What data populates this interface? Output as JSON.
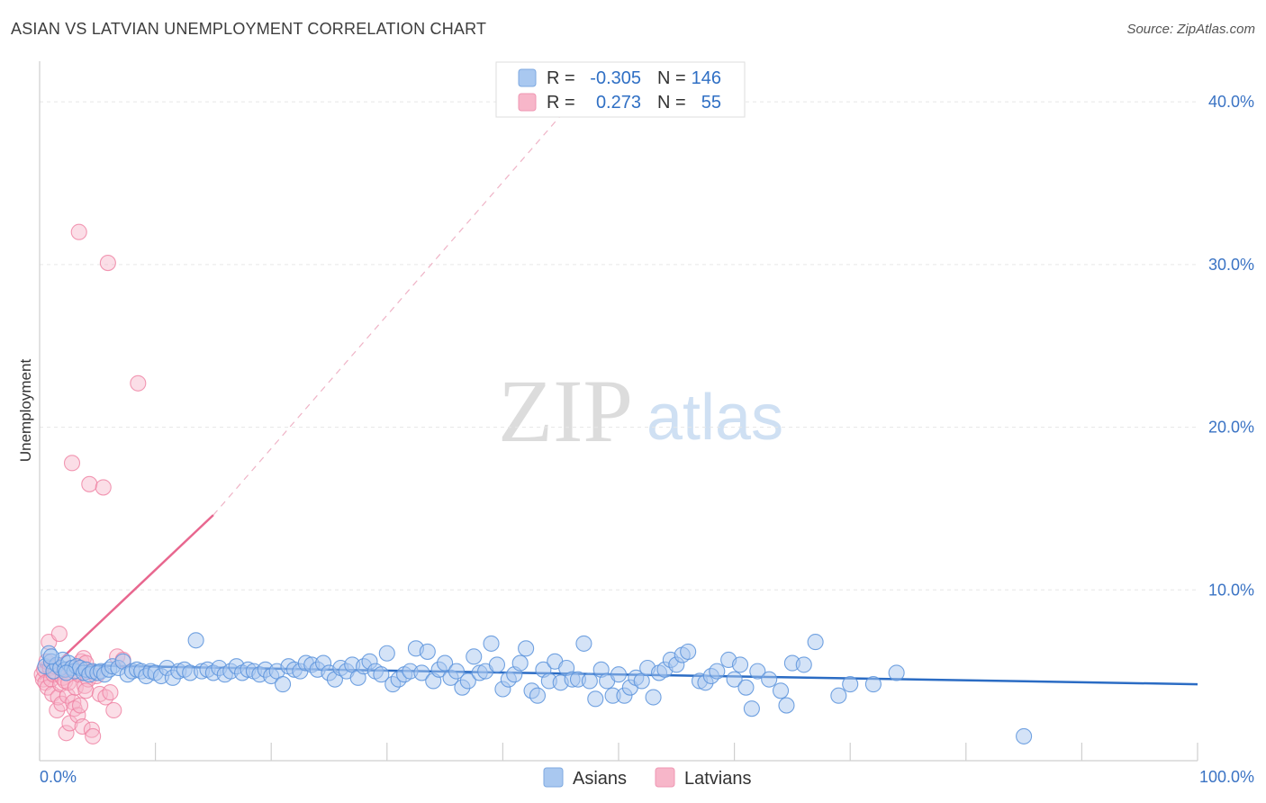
{
  "header": {
    "title": "ASIAN VS LATVIAN UNEMPLOYMENT CORRELATION CHART",
    "source": "Source: ZipAtlas.com"
  },
  "watermark": {
    "zip": "ZIP",
    "atlas": "atlas"
  },
  "stats_legend": {
    "rows": [
      {
        "r_label": "R =",
        "r_value": "-0.305",
        "n_label": "N =",
        "n_value": "146",
        "color": "#a9c8f0"
      },
      {
        "r_label": "R =",
        "r_value": " 0.273",
        "n_label": "N =",
        "n_value": "55",
        "color": "#f7b6c9"
      }
    ]
  },
  "chart_data": {
    "type": "scatter",
    "title": "ASIAN VS LATVIAN UNEMPLOYMENT CORRELATION CHART",
    "xlabel": "",
    "ylabel": "Unemployment",
    "xlim": [
      0,
      100
    ],
    "ylim": [
      -0.5,
      42.5
    ],
    "x_tick_labels": [
      "0.0%",
      "100.0%"
    ],
    "y_ticks": [
      10,
      20,
      30,
      40
    ],
    "y_tick_labels": [
      "10.0%",
      "20.0%",
      "30.0%",
      "40.0%"
    ],
    "grid": true,
    "legend_position": "bottom",
    "colors": {
      "asians": "#5b93dc",
      "asians_line": "#2b6cc4",
      "latvians": "#ef7fa1",
      "latvians_line": "#e8678f"
    },
    "series": [
      {
        "name": "Asians",
        "r": -0.305,
        "n": 146,
        "trend": {
          "x0": 0,
          "y0": 5.4,
          "x1": 100,
          "y1": 4.2
        },
        "points": [
          [
            0.5,
            5.3
          ],
          [
            0.8,
            6.1
          ],
          [
            1.0,
            5.6
          ],
          [
            1.2,
            5.0
          ],
          [
            1.5,
            5.4
          ],
          [
            1.8,
            5.2
          ],
          [
            2.0,
            5.7
          ],
          [
            2.2,
            5.1
          ],
          [
            2.5,
            5.5
          ],
          [
            2.8,
            5.2
          ],
          [
            3.0,
            5.0
          ],
          [
            3.2,
            5.3
          ],
          [
            3.5,
            5.2
          ],
          [
            3.8,
            4.9
          ],
          [
            4.0,
            5.1
          ],
          [
            4.3,
            4.8
          ],
          [
            4.6,
            5.0
          ],
          [
            5.0,
            4.9
          ],
          [
            5.3,
            5.0
          ],
          [
            5.6,
            4.8
          ],
          [
            6.0,
            5.1
          ],
          [
            6.3,
            5.3
          ],
          [
            6.8,
            5.2
          ],
          [
            7.2,
            5.6
          ],
          [
            7.6,
            4.8
          ],
          [
            8.0,
            5.0
          ],
          [
            8.4,
            5.1
          ],
          [
            8.8,
            5.0
          ],
          [
            9.2,
            4.7
          ],
          [
            9.6,
            5.0
          ],
          [
            10.0,
            4.9
          ],
          [
            10.5,
            4.7
          ],
          [
            11.0,
            5.2
          ],
          [
            11.5,
            4.6
          ],
          [
            12.0,
            5.0
          ],
          [
            12.5,
            5.1
          ],
          [
            13.0,
            4.9
          ],
          [
            13.5,
            6.9
          ],
          [
            14.0,
            5.0
          ],
          [
            14.5,
            5.1
          ],
          [
            15.0,
            4.9
          ],
          [
            15.5,
            5.2
          ],
          [
            16.0,
            4.8
          ],
          [
            16.5,
            5.0
          ],
          [
            17.0,
            5.3
          ],
          [
            17.5,
            4.9
          ],
          [
            18.0,
            5.1
          ],
          [
            18.5,
            5.0
          ],
          [
            19.0,
            4.8
          ],
          [
            19.5,
            5.1
          ],
          [
            20.0,
            4.7
          ],
          [
            20.5,
            5.0
          ],
          [
            21.0,
            4.2
          ],
          [
            21.5,
            5.3
          ],
          [
            22.0,
            5.1
          ],
          [
            22.5,
            5.0
          ],
          [
            23.0,
            5.5
          ],
          [
            23.5,
            5.4
          ],
          [
            24.0,
            5.1
          ],
          [
            24.5,
            5.5
          ],
          [
            25.0,
            4.9
          ],
          [
            25.5,
            4.5
          ],
          [
            26.0,
            5.2
          ],
          [
            26.5,
            5.0
          ],
          [
            27.0,
            5.4
          ],
          [
            27.5,
            4.6
          ],
          [
            28.0,
            5.3
          ],
          [
            28.5,
            5.6
          ],
          [
            29.0,
            5.0
          ],
          [
            29.5,
            4.8
          ],
          [
            30.0,
            6.1
          ],
          [
            30.5,
            4.2
          ],
          [
            31.0,
            4.5
          ],
          [
            31.5,
            4.8
          ],
          [
            32.0,
            5.0
          ],
          [
            32.5,
            6.4
          ],
          [
            33.0,
            4.9
          ],
          [
            33.5,
            6.2
          ],
          [
            34.0,
            4.4
          ],
          [
            34.5,
            5.1
          ],
          [
            35.0,
            5.5
          ],
          [
            35.5,
            4.6
          ],
          [
            36.0,
            5.0
          ],
          [
            36.5,
            4.0
          ],
          [
            37.0,
            4.4
          ],
          [
            37.5,
            5.9
          ],
          [
            38.0,
            4.9
          ],
          [
            38.5,
            5.0
          ],
          [
            39.0,
            6.7
          ],
          [
            39.5,
            5.4
          ],
          [
            40.0,
            3.9
          ],
          [
            40.5,
            4.5
          ],
          [
            41.0,
            4.8
          ],
          [
            41.5,
            5.5
          ],
          [
            42.0,
            6.4
          ],
          [
            42.5,
            3.8
          ],
          [
            43.0,
            3.5
          ],
          [
            43.5,
            5.1
          ],
          [
            44.0,
            4.4
          ],
          [
            44.5,
            5.6
          ],
          [
            45.0,
            4.3
          ],
          [
            45.5,
            5.2
          ],
          [
            46.0,
            4.5
          ],
          [
            46.5,
            4.5
          ],
          [
            47.0,
            6.7
          ],
          [
            47.5,
            4.4
          ],
          [
            48.0,
            3.3
          ],
          [
            48.5,
            5.1
          ],
          [
            49.0,
            4.4
          ],
          [
            49.5,
            3.5
          ],
          [
            50.0,
            4.8
          ],
          [
            50.5,
            3.5
          ],
          [
            51.0,
            4.0
          ],
          [
            51.5,
            4.6
          ],
          [
            52.0,
            4.4
          ],
          [
            52.5,
            5.2
          ],
          [
            53.0,
            3.4
          ],
          [
            53.5,
            4.9
          ],
          [
            54.0,
            5.1
          ],
          [
            54.5,
            5.7
          ],
          [
            55.0,
            5.4
          ],
          [
            55.5,
            6.0
          ],
          [
            56.0,
            6.2
          ],
          [
            57.0,
            4.4
          ],
          [
            57.5,
            4.3
          ],
          [
            58.0,
            4.7
          ],
          [
            58.5,
            5.0
          ],
          [
            59.5,
            5.7
          ],
          [
            60.0,
            4.5
          ],
          [
            60.5,
            5.4
          ],
          [
            61.0,
            4.0
          ],
          [
            61.5,
            2.7
          ],
          [
            62.0,
            5.0
          ],
          [
            63.0,
            4.5
          ],
          [
            64.0,
            3.8
          ],
          [
            64.5,
            2.9
          ],
          [
            65.0,
            5.5
          ],
          [
            66.0,
            5.4
          ],
          [
            67.0,
            6.8
          ],
          [
            69.0,
            3.5
          ],
          [
            70.0,
            4.2
          ],
          [
            72.0,
            4.2
          ],
          [
            74.0,
            4.9
          ],
          [
            85.0,
            1.0
          ],
          [
            1.0,
            5.9
          ],
          [
            2.3,
            4.9
          ]
        ]
      },
      {
        "name": "Latvians",
        "r": 0.273,
        "n": 55,
        "trend": {
          "x0": 0,
          "y0": 4.5,
          "x1": 15,
          "y1": 14.6,
          "x_dash_end": 47,
          "y_dash_end": 40.8
        },
        "points": [
          [
            0.2,
            4.8
          ],
          [
            0.3,
            4.5
          ],
          [
            0.4,
            5.1
          ],
          [
            0.5,
            4.3
          ],
          [
            0.6,
            5.6
          ],
          [
            0.7,
            4.0
          ],
          [
            0.8,
            6.8
          ],
          [
            0.9,
            5.2
          ],
          [
            1.0,
            4.5
          ],
          [
            1.1,
            3.6
          ],
          [
            1.2,
            4.8
          ],
          [
            1.3,
            5.3
          ],
          [
            1.4,
            4.9
          ],
          [
            1.5,
            2.6
          ],
          [
            1.6,
            3.4
          ],
          [
            1.7,
            7.3
          ],
          [
            1.8,
            4.2
          ],
          [
            1.9,
            3.0
          ],
          [
            2.0,
            4.6
          ],
          [
            2.1,
            5.0
          ],
          [
            2.2,
            4.4
          ],
          [
            2.3,
            1.2
          ],
          [
            2.4,
            3.5
          ],
          [
            2.5,
            4.3
          ],
          [
            2.6,
            1.8
          ],
          [
            2.7,
            5.2
          ],
          [
            2.8,
            17.8
          ],
          [
            2.9,
            3.1
          ],
          [
            3.0,
            2.7
          ],
          [
            3.1,
            4.0
          ],
          [
            3.2,
            5.0
          ],
          [
            3.3,
            2.3
          ],
          [
            3.4,
            4.8
          ],
          [
            3.5,
            2.9
          ],
          [
            3.6,
            5.6
          ],
          [
            3.7,
            1.6
          ],
          [
            3.8,
            5.8
          ],
          [
            3.9,
            4.1
          ],
          [
            4.0,
            5.5
          ],
          [
            4.2,
            4.5
          ],
          [
            3.4,
            32.0
          ],
          [
            4.0,
            3.8
          ],
          [
            4.3,
            16.5
          ],
          [
            4.5,
            1.4
          ],
          [
            4.6,
            1.0
          ],
          [
            4.9,
            4.7
          ],
          [
            5.2,
            3.6
          ],
          [
            5.5,
            16.3
          ],
          [
            5.7,
            3.4
          ],
          [
            5.9,
            30.1
          ],
          [
            6.1,
            3.7
          ],
          [
            6.4,
            2.6
          ],
          [
            6.7,
            5.9
          ],
          [
            7.2,
            5.7
          ],
          [
            8.5,
            22.7
          ]
        ]
      }
    ]
  },
  "legend": {
    "items": [
      {
        "label": "Asians",
        "color": "#a9c8f0"
      },
      {
        "label": "Latvians",
        "color": "#f7b6c9"
      }
    ]
  }
}
